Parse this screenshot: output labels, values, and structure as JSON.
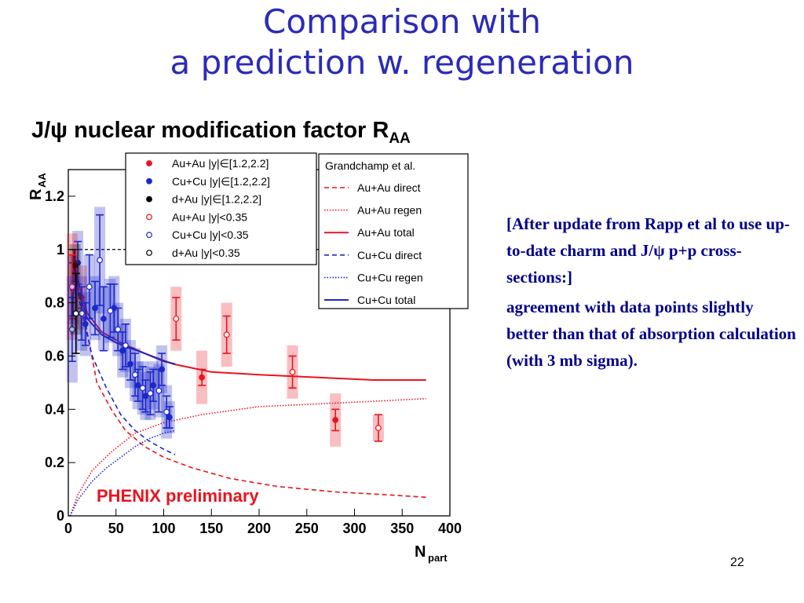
{
  "slide": {
    "title_line1": "Comparison with",
    "title_line2": "a prediction w. regeneration",
    "notes_p1": "[After update from Rapp et al to use up-to-date charm and J/ψ p+p cross-sections:]",
    "notes_p2": "agreement with data points slightly better than that of absorption calculation (with 3 mb sigma).",
    "page_number": "22"
  },
  "chart_data": {
    "type": "scatter",
    "title": "J/ψ nuclear modification factor R",
    "title_subscript": "AA",
    "xlabel": "N",
    "xlabel_subscript": "part",
    "ylabel": "R",
    "ylabel_subscript": "AA",
    "xlim": [
      0,
      400
    ],
    "ylim": [
      0,
      1.3
    ],
    "xticks": [
      0,
      50,
      100,
      150,
      200,
      250,
      300,
      350,
      400
    ],
    "yticks": [
      0,
      0.2,
      0.4,
      0.6,
      0.8,
      1,
      1.2
    ],
    "ytick_labels": [
      "0",
      "0.2",
      "0.4",
      "0.6",
      "0.8",
      "1",
      "1.2"
    ],
    "reference_line": 1,
    "annotation": "PHENIX preliminary",
    "legend_data": {
      "placement": "top-center",
      "entries": [
        {
          "label": "Au+Au |y|∈[1.2,2.2]",
          "color": "#e8141e",
          "marker": "filled"
        },
        {
          "label": "Cu+Cu |y|∈[1.2,2.2]",
          "color": "#1e28c8",
          "marker": "filled"
        },
        {
          "label": "d+Au |y|∈[1.2,2.2]",
          "color": "#000000",
          "marker": "filled"
        },
        {
          "label": "Au+Au |y|<0.35",
          "color": "#e8141e",
          "marker": "open"
        },
        {
          "label": "Cu+Cu |y|<0.35",
          "color": "#1e28c8",
          "marker": "open"
        },
        {
          "label": "d+Au |y|<0.35",
          "color": "#000000",
          "marker": "open"
        }
      ]
    },
    "legend_model": {
      "placement": "top-right",
      "title": "Grandchamp et al.",
      "entries": [
        {
          "label": "Au+Au direct",
          "color": "#e8141e",
          "dash": "dashed"
        },
        {
          "label": "Au+Au regen",
          "color": "#e8141e",
          "dash": "dotted"
        },
        {
          "label": "Au+Au total",
          "color": "#e8141e",
          "dash": "solid"
        },
        {
          "label": "Cu+Cu direct",
          "color": "#1e28c8",
          "dash": "dashed"
        },
        {
          "label": "Cu+Cu regen",
          "color": "#1e28c8",
          "dash": "dotted"
        },
        {
          "label": "Cu+Cu total",
          "color": "#1e28c8",
          "dash": "solid"
        }
      ]
    },
    "series": [
      {
        "color": "#e8141e",
        "marker": "filled",
        "points": [
          {
            "x": 14,
            "y": 0.82,
            "err": 0.04,
            "sys": 0.12
          },
          {
            "x": 140,
            "y": 0.52,
            "err": 0.03,
            "sys": 0.1
          },
          {
            "x": 280,
            "y": 0.36,
            "err": 0.04,
            "sys": 0.1
          }
        ]
      },
      {
        "color": "#1e28c8",
        "marker": "filled",
        "points": [
          {
            "x": 5,
            "y": 0.85,
            "err": 0.1,
            "sys": 0.13
          },
          {
            "x": 10,
            "y": 0.95,
            "err": 0.08,
            "sys": 0.12
          },
          {
            "x": 18,
            "y": 0.72,
            "err": 0.08,
            "sys": 0.12
          },
          {
            "x": 28,
            "y": 0.78,
            "err": 0.1,
            "sys": 0.12
          },
          {
            "x": 37,
            "y": 0.74,
            "err": 0.12,
            "sys": 0.12
          },
          {
            "x": 48,
            "y": 0.78,
            "err": 0.09,
            "sys": 0.12
          },
          {
            "x": 57,
            "y": 0.62,
            "err": 0.07,
            "sys": 0.1
          },
          {
            "x": 65,
            "y": 0.57,
            "err": 0.06,
            "sys": 0.09
          },
          {
            "x": 73,
            "y": 0.49,
            "err": 0.06,
            "sys": 0.09
          },
          {
            "x": 81,
            "y": 0.45,
            "err": 0.06,
            "sys": 0.09
          },
          {
            "x": 89,
            "y": 0.49,
            "err": 0.06,
            "sys": 0.09
          },
          {
            "x": 98,
            "y": 0.55,
            "err": 0.06,
            "sys": 0.09
          },
          {
            "x": 106,
            "y": 0.37,
            "err": 0.04,
            "sys": 0.06
          }
        ]
      },
      {
        "color": "#000000",
        "marker": "filled",
        "points": [
          {
            "x": 7,
            "y": 0.94,
            "err": 0.06,
            "sys": 0.08
          }
        ]
      },
      {
        "color": "#e8141e",
        "marker": "open",
        "points": [
          {
            "x": 4,
            "y": 0.86,
            "err": 0.12,
            "sys": 0.2
          },
          {
            "x": 113,
            "y": 0.74,
            "err": 0.08,
            "sys": 0.12
          },
          {
            "x": 166,
            "y": 0.68,
            "err": 0.07,
            "sys": 0.12
          },
          {
            "x": 235,
            "y": 0.54,
            "err": 0.06,
            "sys": 0.1
          },
          {
            "x": 325,
            "y": 0.33,
            "err": 0.05,
            "sys": 0.05
          }
        ]
      },
      {
        "color": "#1e28c8",
        "marker": "open",
        "points": [
          {
            "x": 4,
            "y": 0.7,
            "err": 0.12,
            "sys": 0.2
          },
          {
            "x": 14,
            "y": 0.76,
            "err": 0.1,
            "sys": 0.14
          },
          {
            "x": 22,
            "y": 0.86,
            "err": 0.12,
            "sys": 0.12
          },
          {
            "x": 33,
            "y": 0.96,
            "err": 0.17,
            "sys": 0.2
          },
          {
            "x": 44,
            "y": 0.77,
            "err": 0.1,
            "sys": 0.12
          },
          {
            "x": 52,
            "y": 0.7,
            "err": 0.08,
            "sys": 0.1
          },
          {
            "x": 60,
            "y": 0.64,
            "err": 0.08,
            "sys": 0.1
          },
          {
            "x": 70,
            "y": 0.53,
            "err": 0.08,
            "sys": 0.1
          },
          {
            "x": 78,
            "y": 0.48,
            "err": 0.08,
            "sys": 0.1
          },
          {
            "x": 86,
            "y": 0.46,
            "err": 0.08,
            "sys": 0.1
          },
          {
            "x": 95,
            "y": 0.47,
            "err": 0.08,
            "sys": 0.1
          },
          {
            "x": 103,
            "y": 0.39,
            "err": 0.06,
            "sys": 0.1
          }
        ]
      },
      {
        "color": "#000000",
        "marker": "open",
        "points": [
          {
            "x": 8,
            "y": 0.76,
            "err": 0.15,
            "sys": 0.08
          }
        ]
      }
    ],
    "curves": [
      {
        "color": "#e8141e",
        "dash": "dashed",
        "points": [
          [
            5,
            0.98
          ],
          [
            15,
            0.78
          ],
          [
            30,
            0.5
          ],
          [
            45,
            0.4
          ],
          [
            60,
            0.32
          ],
          [
            80,
            0.26
          ],
          [
            100,
            0.22
          ],
          [
            130,
            0.18
          ],
          [
            170,
            0.14
          ],
          [
            220,
            0.11
          ],
          [
            280,
            0.09
          ],
          [
            330,
            0.08
          ],
          [
            375,
            0.07
          ]
        ]
      },
      {
        "color": "#e8141e",
        "dash": "dotted",
        "points": [
          [
            2,
            0.0
          ],
          [
            10,
            0.08
          ],
          [
            25,
            0.17
          ],
          [
            45,
            0.24
          ],
          [
            70,
            0.31
          ],
          [
            100,
            0.35
          ],
          [
            140,
            0.38
          ],
          [
            200,
            0.41
          ],
          [
            260,
            0.42
          ],
          [
            320,
            0.43
          ],
          [
            375,
            0.44
          ]
        ]
      },
      {
        "color": "#e8141e",
        "dash": "solid",
        "points": [
          [
            5,
            1.0
          ],
          [
            10,
            0.88
          ],
          [
            20,
            0.76
          ],
          [
            35,
            0.69
          ],
          [
            55,
            0.65
          ],
          [
            80,
            0.61
          ],
          [
            110,
            0.57
          ],
          [
            150,
            0.54
          ],
          [
            200,
            0.53
          ],
          [
            260,
            0.52
          ],
          [
            320,
            0.51
          ],
          [
            375,
            0.51
          ]
        ]
      },
      {
        "color": "#1e28c8",
        "dash": "dashed",
        "points": [
          [
            4,
            0.98
          ],
          [
            12,
            0.8
          ],
          [
            25,
            0.6
          ],
          [
            40,
            0.48
          ],
          [
            55,
            0.38
          ],
          [
            70,
            0.32
          ],
          [
            85,
            0.28
          ],
          [
            100,
            0.25
          ],
          [
            112,
            0.23
          ]
        ]
      },
      {
        "color": "#1e28c8",
        "dash": "dotted",
        "points": [
          [
            2,
            0.0
          ],
          [
            10,
            0.06
          ],
          [
            25,
            0.13
          ],
          [
            40,
            0.18
          ],
          [
            55,
            0.22
          ],
          [
            70,
            0.26
          ],
          [
            85,
            0.29
          ],
          [
            100,
            0.31
          ],
          [
            112,
            0.32
          ]
        ]
      },
      {
        "color": "#1e28c8",
        "dash": "solid",
        "points": [
          [
            4,
            0.98
          ],
          [
            10,
            0.85
          ],
          [
            20,
            0.74
          ],
          [
            35,
            0.68
          ],
          [
            50,
            0.65
          ],
          [
            65,
            0.63
          ],
          [
            80,
            0.61
          ],
          [
            100,
            0.58
          ],
          [
            112,
            0.57
          ]
        ]
      }
    ]
  }
}
